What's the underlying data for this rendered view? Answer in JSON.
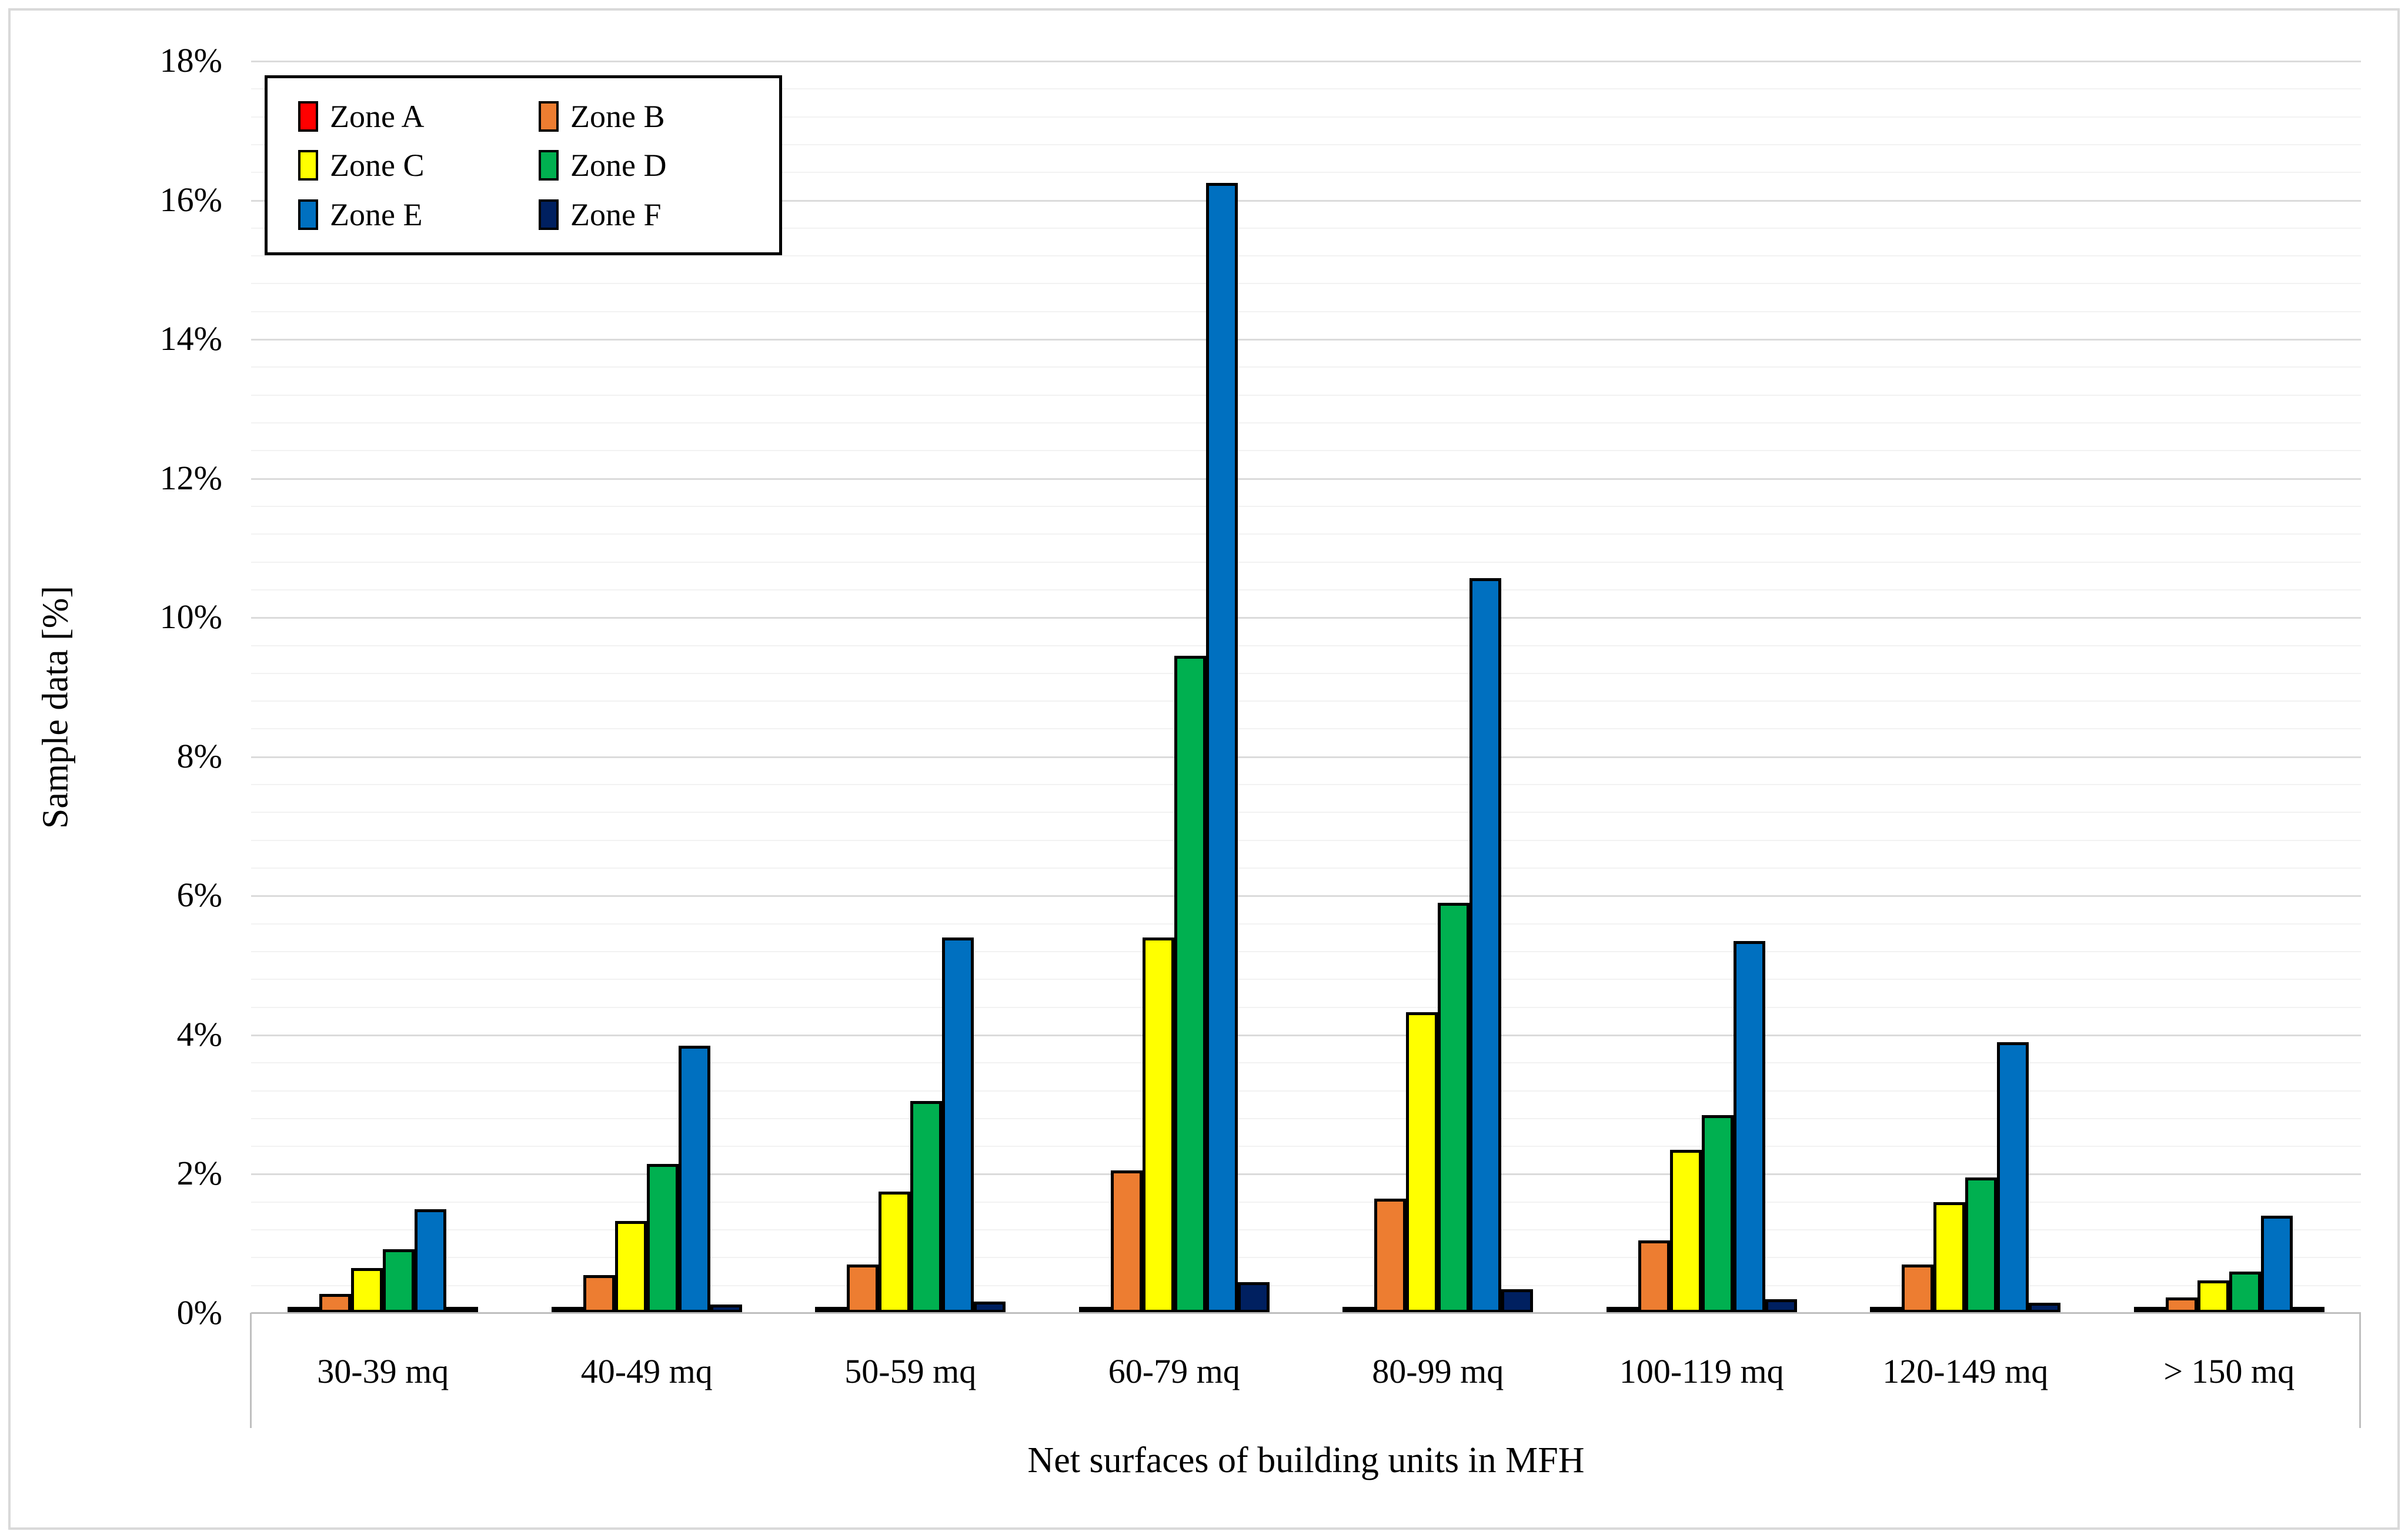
{
  "chart_data": {
    "type": "bar",
    "xlabel": "Net surfaces of building units in MFH",
    "ylabel": "Sample data [%]",
    "ylim": [
      0,
      18
    ],
    "y_major_step": 2,
    "y_minor_step": 0.4,
    "y_tick_labels": [
      "0%",
      "2%",
      "4%",
      "6%",
      "8%",
      "10%",
      "12%",
      "14%",
      "16%",
      "18%"
    ],
    "grid": "on",
    "legend_position": "top-left",
    "categories": [
      "30-39 mq",
      "40-49 mq",
      "50-59 mq",
      "60-79 mq",
      "80-99 mq",
      "100-119 mq",
      "120-149 mq",
      "> 150 mq"
    ],
    "series": [
      {
        "name": "Zone A",
        "color": "#FF0000",
        "values": [
          0.02,
          0.02,
          0.02,
          0.03,
          0.03,
          0.02,
          0.02,
          0.02
        ]
      },
      {
        "name": "Zone B",
        "color": "#ED7D31",
        "values": [
          0.23,
          0.5,
          0.65,
          2.0,
          1.6,
          1.0,
          0.65,
          0.18
        ]
      },
      {
        "name": "Zone C",
        "color": "#FFFF00",
        "values": [
          0.6,
          1.28,
          1.7,
          5.35,
          4.28,
          2.3,
          1.55,
          0.42
        ]
      },
      {
        "name": "Zone D",
        "color": "#00B050",
        "values": [
          0.87,
          2.1,
          3.0,
          9.4,
          5.85,
          2.8,
          1.9,
          0.55
        ]
      },
      {
        "name": "Zone E",
        "color": "#0070C0",
        "values": [
          1.45,
          3.8,
          5.35,
          16.2,
          10.52,
          5.3,
          3.85,
          1.35
        ]
      },
      {
        "name": "Zone F",
        "color": "#002060",
        "values": [
          0.04,
          0.08,
          0.12,
          0.4,
          0.3,
          0.15,
          0.1,
          0.03
        ]
      }
    ],
    "axis_colors": {
      "major_grid": "#DBDBDB",
      "minor_grid": "#F2F2F2",
      "axis_line": "#BFBFBF"
    }
  }
}
